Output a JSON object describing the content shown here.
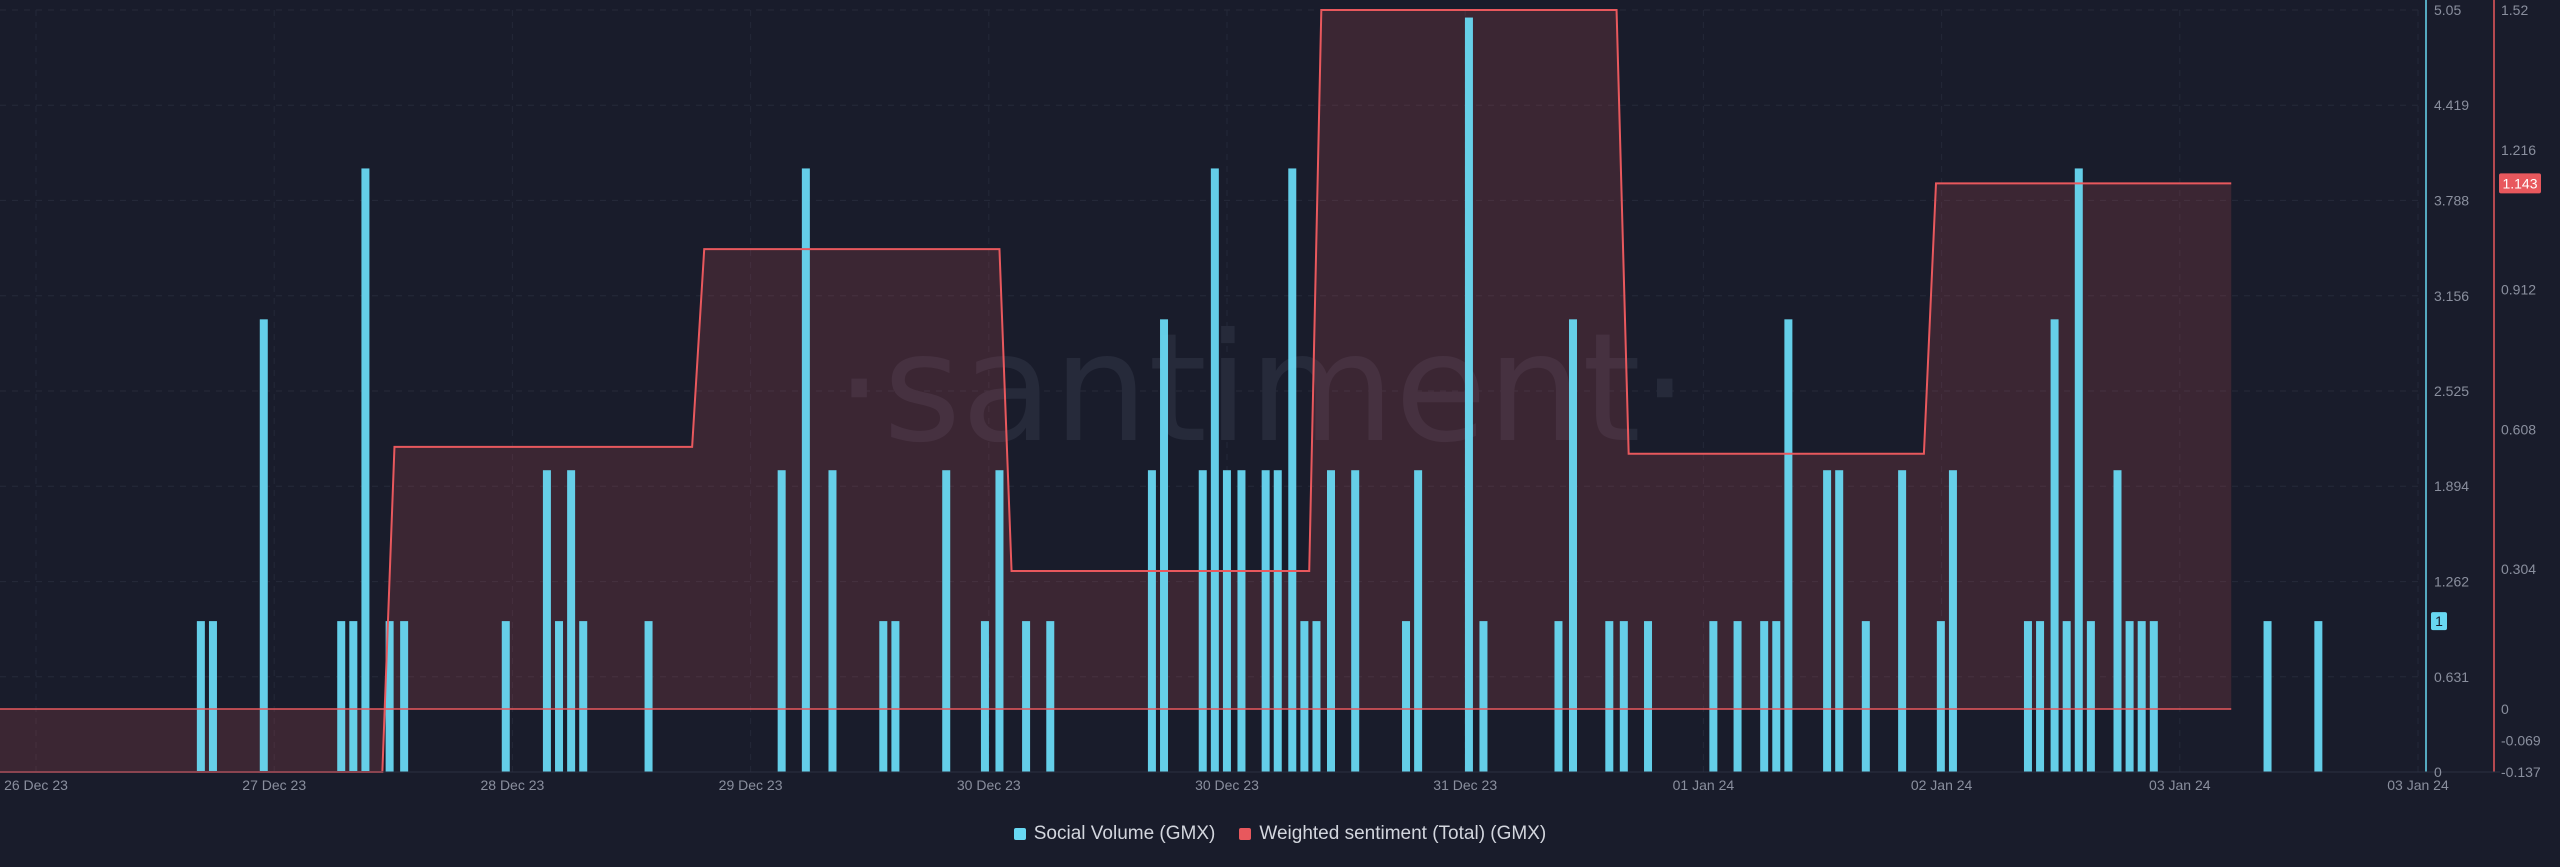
{
  "chart_data": {
    "type": "bar+line",
    "watermark": "·santiment·",
    "x_tick_labels": [
      "26 Dec 23",
      "27 Dec 23",
      "28 Dec 23",
      "29 Dec 23",
      "30 Dec 23",
      "30 Dec 23",
      "31 Dec 23",
      "01 Jan 24",
      "02 Jan 24",
      "03 Jan 24",
      "03 Jan 24"
    ],
    "left_axis": {
      "ticks": [
        "5.05",
        "4.419",
        "3.788",
        "3.156",
        "2.525",
        "1.894",
        "1.262",
        "0.631",
        "0"
      ],
      "ylim": [
        0,
        5.05
      ]
    },
    "right_axis": {
      "ticks": [
        "1.52",
        "1.216",
        "0.912",
        "0.608",
        "0.304",
        "0",
        "-0.069",
        "-0.137"
      ],
      "ylim": [
        -0.137,
        1.52
      ]
    },
    "series": [
      {
        "name": "Social Volume (GMX)",
        "kind": "bar",
        "color": "#68d8f2",
        "axis": "left",
        "last_value_label": "1",
        "points": [
          {
            "t": 0.083,
            "v": 1
          },
          {
            "t": 0.088,
            "v": 1
          },
          {
            "t": 0.109,
            "v": 3
          },
          {
            "t": 0.141,
            "v": 1
          },
          {
            "t": 0.146,
            "v": 1
          },
          {
            "t": 0.151,
            "v": 4
          },
          {
            "t": 0.161,
            "v": 1
          },
          {
            "t": 0.167,
            "v": 1
          },
          {
            "t": 0.209,
            "v": 1
          },
          {
            "t": 0.226,
            "v": 2
          },
          {
            "t": 0.231,
            "v": 1
          },
          {
            "t": 0.236,
            "v": 2
          },
          {
            "t": 0.241,
            "v": 1
          },
          {
            "t": 0.268,
            "v": 1
          },
          {
            "t": 0.323,
            "v": 2
          },
          {
            "t": 0.333,
            "v": 4
          },
          {
            "t": 0.344,
            "v": 2
          },
          {
            "t": 0.365,
            "v": 1
          },
          {
            "t": 0.37,
            "v": 1
          },
          {
            "t": 0.391,
            "v": 2
          },
          {
            "t": 0.407,
            "v": 1
          },
          {
            "t": 0.413,
            "v": 2
          },
          {
            "t": 0.424,
            "v": 1
          },
          {
            "t": 0.434,
            "v": 1
          },
          {
            "t": 0.476,
            "v": 2
          },
          {
            "t": 0.481,
            "v": 3
          },
          {
            "t": 0.497,
            "v": 2
          },
          {
            "t": 0.502,
            "v": 4
          },
          {
            "t": 0.507,
            "v": 2
          },
          {
            "t": 0.513,
            "v": 2
          },
          {
            "t": 0.523,
            "v": 2
          },
          {
            "t": 0.528,
            "v": 2
          },
          {
            "t": 0.534,
            "v": 4
          },
          {
            "t": 0.539,
            "v": 1
          },
          {
            "t": 0.544,
            "v": 1
          },
          {
            "t": 0.55,
            "v": 2
          },
          {
            "t": 0.56,
            "v": 2
          },
          {
            "t": 0.581,
            "v": 1
          },
          {
            "t": 0.586,
            "v": 2
          },
          {
            "t": 0.607,
            "v": 5
          },
          {
            "t": 0.613,
            "v": 1
          },
          {
            "t": 0.644,
            "v": 1
          },
          {
            "t": 0.65,
            "v": 3
          },
          {
            "t": 0.665,
            "v": 1
          },
          {
            "t": 0.671,
            "v": 1
          },
          {
            "t": 0.681,
            "v": 1
          },
          {
            "t": 0.708,
            "v": 1
          },
          {
            "t": 0.718,
            "v": 1
          },
          {
            "t": 0.729,
            "v": 1
          },
          {
            "t": 0.734,
            "v": 1
          },
          {
            "t": 0.739,
            "v": 3
          },
          {
            "t": 0.755,
            "v": 2
          },
          {
            "t": 0.76,
            "v": 2
          },
          {
            "t": 0.771,
            "v": 1
          },
          {
            "t": 0.786,
            "v": 2
          },
          {
            "t": 0.802,
            "v": 1
          },
          {
            "t": 0.807,
            "v": 2
          },
          {
            "t": 0.838,
            "v": 1
          },
          {
            "t": 0.843,
            "v": 1
          },
          {
            "t": 0.849,
            "v": 3
          },
          {
            "t": 0.854,
            "v": 1
          },
          {
            "t": 0.859,
            "v": 4
          },
          {
            "t": 0.864,
            "v": 1
          },
          {
            "t": 0.875,
            "v": 2
          },
          {
            "t": 0.88,
            "v": 1
          },
          {
            "t": 0.885,
            "v": 1
          },
          {
            "t": 0.89,
            "v": 1
          },
          {
            "t": 0.937,
            "v": 1
          },
          {
            "t": 0.958,
            "v": 1
          }
        ]
      },
      {
        "name": "Weighted sentiment (Total) (GMX)",
        "kind": "step-area",
        "color": "#e8585d",
        "axis": "right",
        "last_value_label": "1.143",
        "baseline": 0,
        "steps": [
          {
            "t0": 0.0,
            "t1": 0.158,
            "v": -0.137
          },
          {
            "t0": 0.163,
            "t1": 0.286,
            "v": 0.57
          },
          {
            "t0": 0.291,
            "t1": 0.413,
            "v": 1.0
          },
          {
            "t0": 0.418,
            "t1": 0.541,
            "v": 0.3
          },
          {
            "t0": 0.546,
            "t1": 0.668,
            "v": 1.52
          },
          {
            "t0": 0.673,
            "t1": 0.795,
            "v": 0.555
          },
          {
            "t0": 0.8,
            "t1": 0.922,
            "v": 1.143
          }
        ]
      }
    ]
  },
  "legend": {
    "items": [
      {
        "label": "Social Volume (GMX)",
        "color": "#68d8f2"
      },
      {
        "label": "Weighted sentiment (Total) (GMX)",
        "color": "#e8585d"
      }
    ]
  }
}
